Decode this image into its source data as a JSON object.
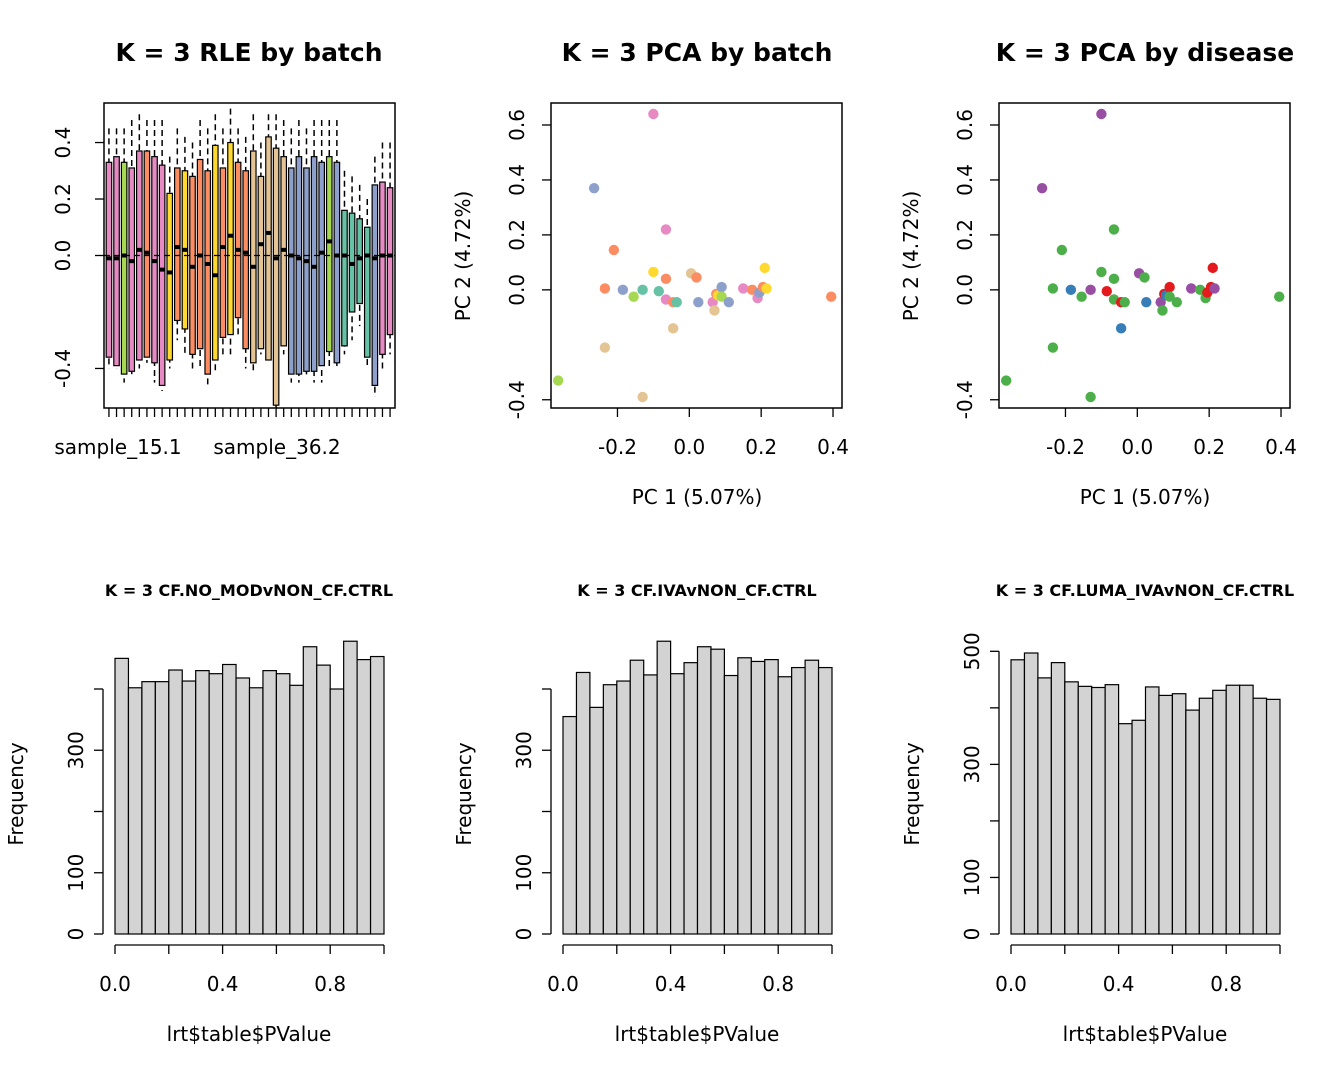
{
  "palette": {
    "batch": [
      "#E78AC3",
      "#A6D854",
      "#FFD92F",
      "#FC8D62",
      "#66C2A5",
      "#E5C494",
      "#8DA0CB"
    ],
    "disease": [
      "#4DAF4A",
      "#984EA3",
      "#E41A1C",
      "#377EB8"
    ],
    "hist_fill": "#D3D3D3"
  },
  "chart_data": [
    {
      "type": "boxplot",
      "title": "K = 3 RLE by batch",
      "xticklabels": [
        "sample_15.1",
        "sample_36.2"
      ],
      "yticks": [
        -0.4,
        0.0,
        0.2,
        0.4
      ],
      "ylim": [
        -0.54,
        0.54
      ],
      "reference_line": 0,
      "boxes": [
        {
          "lo": -0.4,
          "q1": -0.36,
          "med": -0.01,
          "q3": 0.33,
          "hi": 0.45,
          "batch": 0
        },
        {
          "lo": -0.4,
          "q1": -0.39,
          "med": -0.01,
          "q3": 0.35,
          "hi": 0.45,
          "batch": 0
        },
        {
          "lo": -0.45,
          "q1": -0.42,
          "med": 0.0,
          "q3": 0.33,
          "hi": 0.45,
          "batch": 1
        },
        {
          "lo": -0.42,
          "q1": -0.41,
          "med": -0.02,
          "q3": 0.31,
          "hi": 0.48,
          "batch": 0
        },
        {
          "lo": -0.4,
          "q1": -0.37,
          "med": 0.02,
          "q3": 0.37,
          "hi": 0.5,
          "batch": 0
        },
        {
          "lo": -0.38,
          "q1": -0.36,
          "med": 0.01,
          "q3": 0.37,
          "hi": 0.48,
          "batch": 3
        },
        {
          "lo": -0.45,
          "q1": -0.38,
          "med": -0.02,
          "q3": 0.35,
          "hi": 0.48,
          "batch": 0
        },
        {
          "lo": -0.48,
          "q1": -0.46,
          "med": -0.05,
          "q3": 0.32,
          "hi": 0.48,
          "batch": 0
        },
        {
          "lo": -0.4,
          "q1": -0.37,
          "med": -0.06,
          "q3": 0.22,
          "hi": 0.35,
          "batch": 2
        },
        {
          "lo": -0.3,
          "q1": -0.23,
          "med": 0.03,
          "q3": 0.31,
          "hi": 0.45,
          "batch": 3
        },
        {
          "lo": -0.35,
          "q1": -0.26,
          "med": 0.02,
          "q3": 0.3,
          "hi": 0.42,
          "batch": 2
        },
        {
          "lo": -0.4,
          "q1": -0.35,
          "med": -0.04,
          "q3": 0.28,
          "hi": 0.4,
          "batch": 3
        },
        {
          "lo": -0.4,
          "q1": -0.33,
          "med": 0.0,
          "q3": 0.34,
          "hi": 0.48,
          "batch": 3
        },
        {
          "lo": -0.46,
          "q1": -0.42,
          "med": -0.03,
          "q3": 0.3,
          "hi": 0.45,
          "batch": 3
        },
        {
          "lo": -0.42,
          "q1": -0.37,
          "med": -0.07,
          "q3": 0.39,
          "hi": 0.5,
          "batch": 2
        },
        {
          "lo": -0.35,
          "q1": -0.29,
          "med": 0.03,
          "q3": 0.31,
          "hi": 0.45,
          "batch": 3
        },
        {
          "lo": -0.35,
          "q1": -0.28,
          "med": 0.07,
          "q3": 0.4,
          "hi": 0.52,
          "batch": 2
        },
        {
          "lo": -0.28,
          "q1": -0.22,
          "med": 0.02,
          "q3": 0.33,
          "hi": 0.45,
          "batch": 3
        },
        {
          "lo": -0.4,
          "q1": -0.33,
          "med": 0.01,
          "q3": 0.3,
          "hi": 0.42,
          "batch": 3
        },
        {
          "lo": -0.42,
          "q1": -0.38,
          "med": -0.04,
          "q3": 0.37,
          "hi": 0.5,
          "batch": 5
        },
        {
          "lo": -0.35,
          "q1": -0.33,
          "med": 0.04,
          "q3": 0.28,
          "hi": 0.4,
          "batch": 5
        },
        {
          "lo": -0.38,
          "q1": -0.37,
          "med": 0.08,
          "q3": 0.42,
          "hi": 0.5,
          "batch": 5
        },
        {
          "lo": -0.54,
          "q1": -0.53,
          "med": -0.01,
          "q3": 0.38,
          "hi": 0.5,
          "batch": 5
        },
        {
          "lo": -0.35,
          "q1": -0.32,
          "med": 0.02,
          "q3": 0.35,
          "hi": 0.48,
          "batch": 5
        },
        {
          "lo": -0.45,
          "q1": -0.42,
          "med": 0.0,
          "q3": 0.31,
          "hi": 0.45,
          "batch": 6
        },
        {
          "lo": -0.45,
          "q1": -0.42,
          "med": -0.01,
          "q3": 0.35,
          "hi": 0.48,
          "batch": 6
        },
        {
          "lo": -0.43,
          "q1": -0.41,
          "med": -0.02,
          "q3": 0.31,
          "hi": 0.45,
          "batch": 6
        },
        {
          "lo": -0.45,
          "q1": -0.41,
          "med": -0.04,
          "q3": 0.35,
          "hi": 0.48,
          "batch": 6
        },
        {
          "lo": -0.45,
          "q1": -0.39,
          "med": 0.01,
          "q3": 0.33,
          "hi": 0.48,
          "batch": 6
        },
        {
          "lo": -0.4,
          "q1": -0.34,
          "med": 0.05,
          "q3": 0.35,
          "hi": 0.48,
          "batch": 1
        },
        {
          "lo": -0.4,
          "q1": -0.38,
          "med": 0.0,
          "q3": 0.33,
          "hi": 0.48,
          "batch": 6
        },
        {
          "lo": -0.35,
          "q1": -0.32,
          "med": 0.0,
          "q3": 0.16,
          "hi": 0.3,
          "batch": 4
        },
        {
          "lo": -0.3,
          "q1": -0.2,
          "med": -0.03,
          "q3": 0.15,
          "hi": 0.28,
          "batch": 4
        },
        {
          "lo": -0.25,
          "q1": -0.17,
          "med": -0.01,
          "q3": 0.13,
          "hi": 0.25,
          "batch": 4
        },
        {
          "lo": -0.4,
          "q1": -0.36,
          "med": 0.0,
          "q3": 0.1,
          "hi": 0.2,
          "batch": 4
        },
        {
          "lo": -0.5,
          "q1": -0.46,
          "med": -0.01,
          "q3": 0.25,
          "hi": 0.35,
          "batch": 6
        },
        {
          "lo": -0.4,
          "q1": -0.35,
          "med": 0.0,
          "q3": 0.26,
          "hi": 0.4,
          "batch": 0
        },
        {
          "lo": -0.35,
          "q1": -0.28,
          "med": 0.0,
          "q3": 0.24,
          "hi": 0.4,
          "batch": 0
        }
      ]
    },
    {
      "type": "scatter",
      "title": "K = 3 PCA by batch",
      "xlabel": "PC 1 (5.07%)",
      "ylabel": "PC 2 (4.72%)",
      "xticks": [
        -0.2,
        0.0,
        0.2,
        0.4
      ],
      "yticks": [
        -0.4,
        0.0,
        0.2,
        0.4,
        0.6
      ],
      "xlim": [
        -0.385,
        0.425
      ],
      "ylim": [
        -0.43,
        0.68
      ],
      "points": [
        {
          "x": -0.365,
          "y": -0.33,
          "batch": 1,
          "disease": 0
        },
        {
          "x": -0.265,
          "y": 0.37,
          "batch": 6,
          "disease": 1
        },
        {
          "x": -0.235,
          "y": 0.005,
          "batch": 3,
          "disease": 0
        },
        {
          "x": -0.235,
          "y": -0.21,
          "batch": 5,
          "disease": 0
        },
        {
          "x": -0.21,
          "y": 0.145,
          "batch": 3,
          "disease": 0
        },
        {
          "x": -0.185,
          "y": 0.0,
          "batch": 6,
          "disease": 3
        },
        {
          "x": -0.155,
          "y": -0.025,
          "batch": 1,
          "disease": 0
        },
        {
          "x": -0.13,
          "y": 0.0,
          "batch": 4,
          "disease": 1
        },
        {
          "x": -0.13,
          "y": -0.39,
          "batch": 5,
          "disease": 0
        },
        {
          "x": -0.1,
          "y": 0.64,
          "batch": 0,
          "disease": 1
        },
        {
          "x": -0.1,
          "y": 0.065,
          "batch": 2,
          "disease": 0
        },
        {
          "x": -0.085,
          "y": -0.005,
          "batch": 4,
          "disease": 2
        },
        {
          "x": -0.065,
          "y": 0.22,
          "batch": 0,
          "disease": 0
        },
        {
          "x": -0.065,
          "y": 0.04,
          "batch": 3,
          "disease": 0
        },
        {
          "x": -0.065,
          "y": -0.035,
          "batch": 0,
          "disease": 0
        },
        {
          "x": -0.045,
          "y": -0.045,
          "batch": 3,
          "disease": 2
        },
        {
          "x": -0.045,
          "y": -0.14,
          "batch": 5,
          "disease": 3
        },
        {
          "x": -0.035,
          "y": -0.045,
          "batch": 4,
          "disease": 0
        },
        {
          "x": 0.005,
          "y": 0.06,
          "batch": 5,
          "disease": 1
        },
        {
          "x": 0.02,
          "y": 0.045,
          "batch": 3,
          "disease": 0
        },
        {
          "x": 0.025,
          "y": -0.045,
          "batch": 6,
          "disease": 3
        },
        {
          "x": 0.065,
          "y": -0.045,
          "batch": 0,
          "disease": 1
        },
        {
          "x": 0.07,
          "y": -0.075,
          "batch": 5,
          "disease": 0
        },
        {
          "x": 0.075,
          "y": -0.015,
          "batch": 3,
          "disease": 2
        },
        {
          "x": 0.08,
          "y": -0.02,
          "batch": 2,
          "disease": 3
        },
        {
          "x": 0.09,
          "y": 0.01,
          "batch": 6,
          "disease": 2
        },
        {
          "x": 0.09,
          "y": -0.025,
          "batch": 1,
          "disease": 0
        },
        {
          "x": 0.11,
          "y": -0.045,
          "batch": 6,
          "disease": 0
        },
        {
          "x": 0.15,
          "y": 0.005,
          "batch": 0,
          "disease": 1
        },
        {
          "x": 0.175,
          "y": 0.0,
          "batch": 3,
          "disease": 0
        },
        {
          "x": 0.19,
          "y": -0.03,
          "batch": 0,
          "disease": 0
        },
        {
          "x": 0.195,
          "y": -0.01,
          "batch": 6,
          "disease": 2
        },
        {
          "x": 0.205,
          "y": 0.01,
          "batch": 3,
          "disease": 2
        },
        {
          "x": 0.21,
          "y": 0.08,
          "batch": 2,
          "disease": 2
        },
        {
          "x": 0.215,
          "y": 0.005,
          "batch": 2,
          "disease": 1
        },
        {
          "x": 0.395,
          "y": -0.025,
          "batch": 3,
          "disease": 0
        }
      ]
    },
    {
      "type": "scatter",
      "title": "K = 3 PCA by disease",
      "xlabel": "PC 1 (5.07%)",
      "ylabel": "PC 2 (4.72%)",
      "xticks": [
        -0.2,
        0.0,
        0.2,
        0.4
      ],
      "yticks": [
        -0.4,
        0.0,
        0.2,
        0.4,
        0.6
      ],
      "xlim": [
        -0.385,
        0.425
      ],
      "ylim": [
        -0.43,
        0.68
      ],
      "color_by": "disease",
      "points_from": 1
    },
    {
      "type": "histogram",
      "title": "K = 3 CF.NO_MODvNON_CF.CTRL",
      "xlabel": "lrt$table$PValue",
      "ylabel": "Frequency",
      "bin_width": 0.05,
      "xlim": [
        0,
        1
      ],
      "xticks": [
        0.0,
        0.4,
        0.8
      ],
      "yticks": [
        0,
        100,
        300
      ],
      "yminor": [
        200,
        400
      ],
      "ylim": [
        0,
        480
      ],
      "counts": [
        450,
        402,
        412,
        412,
        431,
        413,
        430,
        425,
        440,
        418,
        402,
        430,
        425,
        406,
        469,
        439,
        400,
        478,
        448,
        453
      ]
    },
    {
      "type": "histogram",
      "title": "K = 3 CF.IVAvNON_CF.CTRL",
      "xlabel": "lrt$table$PValue",
      "ylabel": "Frequency",
      "bin_width": 0.05,
      "xlim": [
        0,
        1
      ],
      "xticks": [
        0.0,
        0.4,
        0.8
      ],
      "yticks": [
        0,
        100,
        300
      ],
      "yminor": [
        200,
        400
      ],
      "ylim": [
        0,
        480
      ],
      "counts": [
        355,
        427,
        370,
        407,
        413,
        447,
        423,
        478,
        425,
        443,
        469,
        465,
        422,
        451,
        445,
        448,
        420,
        435,
        447,
        435
      ]
    },
    {
      "type": "histogram",
      "title": "K = 3 CF.LUMA_IVAvNON_CF.CTRL",
      "xlabel": "lrt$table$PValue",
      "ylabel": "Frequency",
      "bin_width": 0.05,
      "xlim": [
        0,
        1
      ],
      "xticks": [
        0.0,
        0.4,
        0.8
      ],
      "yticks": [
        0,
        100,
        300,
        500
      ],
      "yminor": [
        200,
        400
      ],
      "ylim": [
        0,
        520
      ],
      "counts": [
        485,
        497,
        453,
        480,
        446,
        438,
        436,
        441,
        372,
        378,
        437,
        422,
        425,
        396,
        417,
        431,
        440,
        440,
        417,
        415
      ]
    }
  ]
}
